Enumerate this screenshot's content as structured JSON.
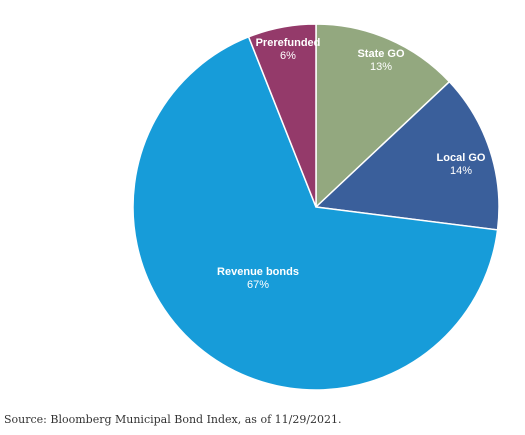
{
  "chart_data": {
    "type": "pie",
    "slices": [
      {
        "label": "State GO",
        "value": 13,
        "value_label": "13%",
        "color": "#93a87f"
      },
      {
        "label": "Local GO",
        "value": 14,
        "value_label": "14%",
        "color": "#3a5f9b"
      },
      {
        "label": "Revenue bonds",
        "value": 67,
        "value_label": "67%",
        "color": "#179cd9"
      },
      {
        "label": "Prerefunded",
        "value": 6,
        "value_label": "6%",
        "color": "#943a6a"
      }
    ],
    "start_angle_deg": 0,
    "direction": "clockwise",
    "source_note": "Source: Bloomberg Municipal Bond Index, as of 11/29/2021."
  }
}
